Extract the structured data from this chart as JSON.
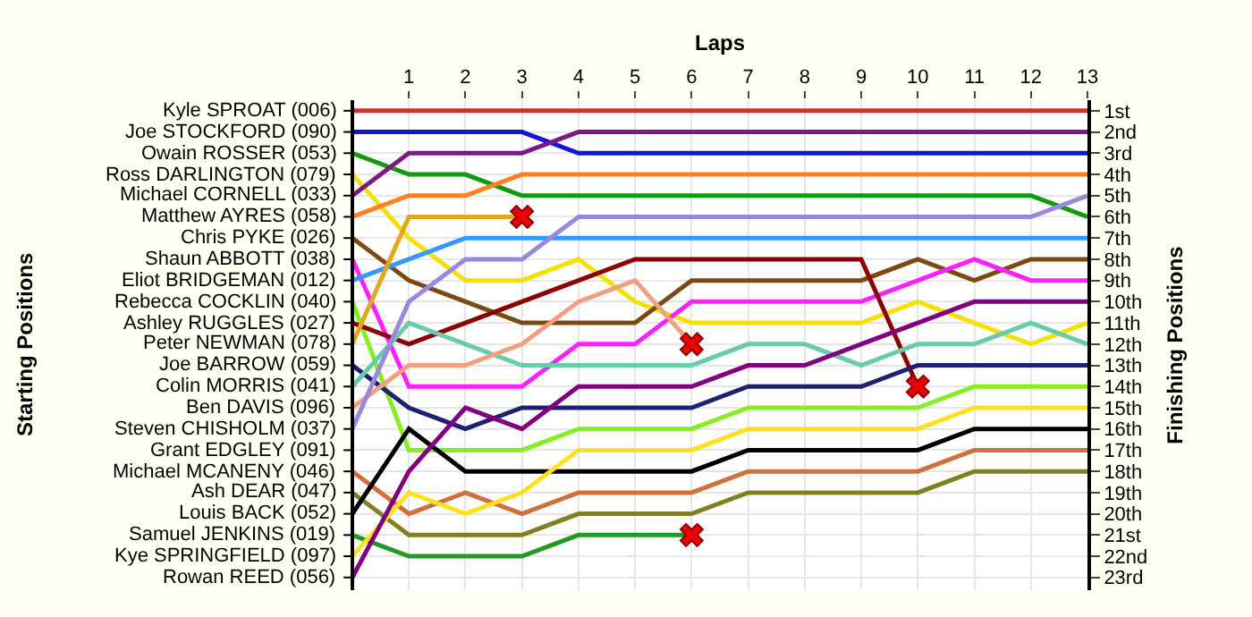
{
  "chart_data": {
    "type": "line",
    "xlabel": "Laps",
    "annotations": [
      "Starting Positions"
    ],
    "y2label": "Finishing Positions",
    "x": [
      0,
      1,
      2,
      3,
      4,
      5,
      6,
      7,
      8,
      9,
      10,
      11,
      12,
      13
    ],
    "xlim": [
      0,
      13
    ],
    "xticks": [
      1,
      2,
      3,
      4,
      5,
      6,
      7,
      8,
      9,
      10,
      11,
      12,
      13
    ],
    "y_categories": [
      "Kyle SPROAT (006)",
      "Joe STOCKFORD (090)",
      "Owain ROSSER (053)",
      "Ross DARLINGTON (079)",
      "Michael CORNELL (033)",
      "Matthew AYRES (058)",
      "Chris PYKE (026)",
      "Shaun ABBOTT (038)",
      "Eliot BRIDGEMAN (012)",
      "Rebecca COCKLIN (040)",
      "Ashley RUGGLES (027)",
      "Peter NEWMAN (078)",
      "Joe BARROW (059)",
      "Colin MORRIS (041)",
      "Ben DAVIS (096)",
      "Steven CHISHOLM (037)",
      "Grant EDGLEY (091)",
      "Michael MCANENY (046)",
      "Ash DEAR (047)",
      "Louis BACK (052)",
      "Samuel JENKINS (019)",
      "Kye SPRINGFIELD (097)",
      "Rowan REED (056)"
    ],
    "y2lim": [
      23.6,
      0.5
    ],
    "y2ticks": [
      {
        "value": 1,
        "label": "1st"
      },
      {
        "value": 2,
        "label": "2nd"
      },
      {
        "value": 3,
        "label": "3rd"
      },
      {
        "value": 4,
        "label": "4th"
      },
      {
        "value": 5,
        "label": "5th"
      },
      {
        "value": 6,
        "label": "6th"
      },
      {
        "value": 7,
        "label": "7th"
      },
      {
        "value": 8,
        "label": "8th"
      },
      {
        "value": 9,
        "label": "9th"
      },
      {
        "value": 10,
        "label": "10th"
      },
      {
        "value": 11,
        "label": "11th"
      },
      {
        "value": 12,
        "label": "12th"
      },
      {
        "value": 13,
        "label": "13th"
      },
      {
        "value": 14,
        "label": "14th"
      },
      {
        "value": 15,
        "label": "15th"
      },
      {
        "value": 16,
        "label": "16th"
      },
      {
        "value": 17,
        "label": "17th"
      },
      {
        "value": 18,
        "label": "18th"
      },
      {
        "value": 19,
        "label": "19th"
      },
      {
        "value": 20,
        "label": "20th"
      },
      {
        "value": 21,
        "label": "21st"
      },
      {
        "value": 22,
        "label": "22nd"
      },
      {
        "value": 23,
        "label": "23rd"
      }
    ],
    "grid": true,
    "series": [
      {
        "axis": "y2",
        "color": "#e02828",
        "values": [
          1,
          1,
          1,
          1,
          1,
          1,
          1,
          1,
          1,
          1,
          1,
          1,
          1,
          1
        ]
      },
      {
        "axis": "y2",
        "color": "#1414d2",
        "values": [
          2,
          2,
          2,
          2,
          3,
          3,
          3,
          3,
          3,
          3,
          3,
          3,
          3,
          3
        ]
      },
      {
        "axis": "y2",
        "color": "#119911",
        "values": [
          3,
          4,
          4,
          5,
          5,
          5,
          5,
          5,
          5,
          5,
          5,
          5,
          5,
          6
        ]
      },
      {
        "axis": "y2",
        "color": "#f5e000",
        "values": [
          4,
          7,
          9,
          9,
          8,
          10,
          11,
          11,
          11,
          11,
          10,
          11,
          12,
          11
        ]
      },
      {
        "axis": "y2",
        "color": "#7a1a86",
        "values": [
          5,
          3,
          3,
          3,
          2,
          2,
          2,
          2,
          2,
          2,
          2,
          2,
          2,
          2
        ]
      },
      {
        "axis": "y2",
        "color": "#ff8020",
        "values": [
          6,
          5,
          5,
          4,
          4,
          4,
          4,
          4,
          4,
          4,
          4,
          4,
          4,
          4
        ]
      },
      {
        "axis": "y2",
        "color": "#7a4a10",
        "values": [
          7,
          9,
          10,
          11,
          11,
          11,
          9,
          9,
          9,
          9,
          8,
          9,
          8,
          8
        ]
      },
      {
        "axis": "y2",
        "color": "#ff20ff",
        "values": [
          8,
          14,
          14,
          14,
          12,
          12,
          10,
          10,
          10,
          10,
          9,
          8,
          9,
          9
        ]
      },
      {
        "axis": "y2",
        "color": "#3399ff",
        "values": [
          9,
          8,
          7,
          7,
          7,
          7,
          7,
          7,
          7,
          7,
          7,
          7,
          7,
          7
        ]
      },
      {
        "axis": "y2",
        "color": "#88ee22",
        "values": [
          10,
          17,
          17,
          17,
          16,
          16,
          16,
          15,
          15,
          15,
          15,
          14,
          14,
          14
        ]
      },
      {
        "axis": "y2",
        "color": "#8b0000",
        "values": [
          11,
          12,
          11,
          10,
          9,
          8,
          8,
          8,
          8,
          8,
          14,
          null,
          null,
          null
        ]
      },
      {
        "axis": "y2",
        "color": "#e0a820",
        "values": [
          12,
          6,
          6,
          6,
          null,
          null,
          null,
          null,
          null,
          null,
          null,
          null,
          null,
          null
        ]
      },
      {
        "axis": "y2",
        "color": "#202070",
        "values": [
          13,
          15,
          16,
          15,
          15,
          15,
          15,
          14,
          14,
          14,
          13,
          13,
          13,
          13
        ]
      },
      {
        "axis": "y2",
        "color": "#66ccaa",
        "values": [
          14,
          11,
          12,
          13,
          13,
          13,
          13,
          12,
          12,
          13,
          12,
          12,
          11,
          12
        ]
      },
      {
        "axis": "y2",
        "color": "#f0a080",
        "values": [
          15,
          13,
          13,
          12,
          10,
          9,
          12,
          null,
          null,
          null,
          null,
          null,
          null,
          null
        ]
      },
      {
        "axis": "y2",
        "color": "#9988dd",
        "values": [
          16,
          10,
          8,
          8,
          6,
          6,
          6,
          6,
          6,
          6,
          6,
          6,
          6,
          5
        ]
      },
      {
        "axis": "y2",
        "color": "#d0703a",
        "values": [
          18,
          20,
          19,
          20,
          19,
          19,
          19,
          18,
          18,
          18,
          18,
          17,
          17,
          17
        ]
      },
      {
        "axis": "y2",
        "color": "#808020",
        "values": [
          19,
          21,
          21,
          21,
          20,
          20,
          20,
          19,
          19,
          19,
          19,
          18,
          18,
          18
        ]
      },
      {
        "axis": "y2",
        "color": "#000000",
        "values": [
          20,
          16,
          18,
          18,
          18,
          18,
          18,
          17,
          17,
          17,
          17,
          16,
          16,
          16
        ]
      },
      {
        "axis": "y2",
        "color": "#229922",
        "values": [
          21,
          22,
          22,
          22,
          21,
          21,
          21,
          null,
          null,
          null,
          null,
          null,
          null,
          null
        ]
      },
      {
        "axis": "y2",
        "color": "#ffe020",
        "values": [
          22,
          19,
          20,
          19,
          17,
          17,
          17,
          16,
          16,
          16,
          16,
          15,
          15,
          15
        ]
      },
      {
        "axis": "y2",
        "color": "#800080",
        "values": [
          23,
          18,
          15,
          16,
          14,
          14,
          14,
          13,
          13,
          12,
          11,
          10,
          10,
          10
        ]
      },
      {
        "axis": "y2",
        "type": "scatter",
        "marker": "cross",
        "color": "#ee0000",
        "x": [
          3,
          6,
          10,
          6
        ],
        "values": [
          6,
          12,
          14,
          21
        ]
      }
    ]
  }
}
